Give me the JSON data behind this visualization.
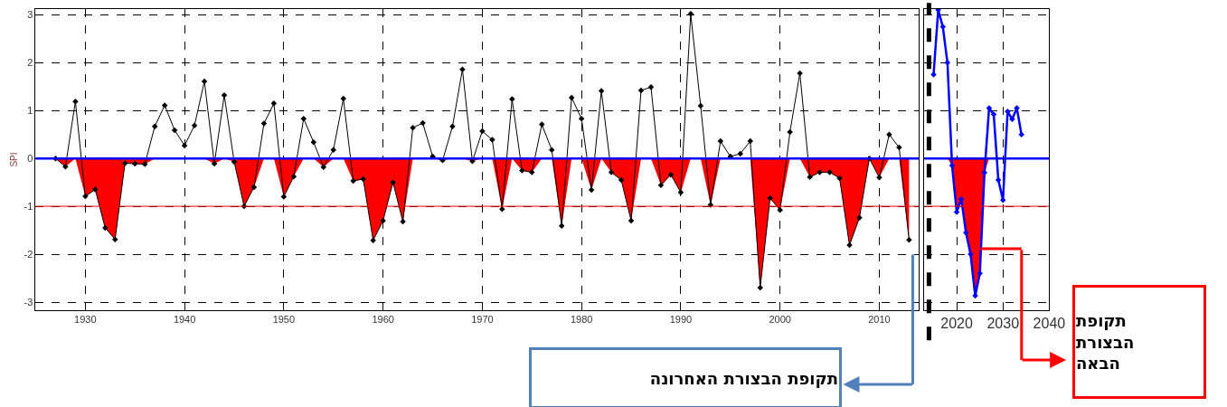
{
  "chart_data": [
    {
      "type": "line",
      "ylabel": "SPI",
      "x": [
        1927,
        1928,
        1929,
        1930,
        1931,
        1932,
        1933,
        1934,
        1935,
        1936,
        1937,
        1938,
        1939,
        1940,
        1941,
        1942,
        1943,
        1944,
        1945,
        1946,
        1947,
        1948,
        1949,
        1950,
        1951,
        1952,
        1953,
        1954,
        1955,
        1956,
        1957,
        1958,
        1959,
        1960,
        1961,
        1962,
        1963,
        1964,
        1965,
        1966,
        1967,
        1968,
        1969,
        1970,
        1971,
        1972,
        1973,
        1974,
        1975,
        1976,
        1977,
        1978,
        1979,
        1980,
        1981,
        1982,
        1983,
        1984,
        1985,
        1986,
        1987,
        1988,
        1989,
        1990,
        1991,
        1992,
        1993,
        1994,
        1995,
        1996,
        1997,
        1998,
        1999,
        2000,
        2001,
        2002,
        2003,
        2004,
        2005,
        2006,
        2007,
        2008,
        2009,
        2010,
        2011,
        2012,
        2013
      ],
      "series": [
        {
          "type": "area",
          "color": "#ff0000",
          "values": [
            0,
            -0.17,
            0,
            -0.79,
            -0.65,
            -1.45,
            -1.69,
            -0.1,
            -0.11,
            -0.12,
            0,
            0,
            0,
            0,
            0,
            0,
            -0.11,
            0,
            -0.07,
            -1.0,
            -0.6,
            0,
            0,
            -0.8,
            -0.38,
            0,
            0,
            -0.18,
            0,
            0,
            -0.47,
            -0.43,
            -1.71,
            -1.3,
            -0.5,
            -1.32,
            0,
            0,
            0,
            -0.04,
            0,
            0,
            -0.06,
            0,
            0,
            -1.06,
            0,
            -0.25,
            -0.29,
            0,
            0,
            -1.41,
            0,
            0,
            -0.66,
            0,
            -0.29,
            -0.45,
            -1.3,
            0,
            0,
            -0.56,
            -0.34,
            -0.71,
            0,
            0,
            -0.97,
            0,
            0,
            0,
            0,
            -2.7,
            -0.83,
            -1.08,
            0,
            0,
            -0.39,
            -0.29,
            -0.29,
            -0.41,
            -1.81,
            -1.24,
            0,
            -0.4,
            0,
            0,
            -1.7
          ]
        },
        {
          "color": "#000000",
          "marker": "diamond",
          "values": [
            0,
            -0.17,
            1.19,
            -0.79,
            -0.65,
            -1.45,
            -1.69,
            -0.1,
            -0.11,
            -0.12,
            0.67,
            1.11,
            0.59,
            0.27,
            0.69,
            1.61,
            -0.11,
            1.32,
            -0.07,
            -1.0,
            -0.6,
            0.73,
            1.15,
            -0.8,
            -0.38,
            0.83,
            0.34,
            -0.18,
            0.18,
            1.25,
            -0.47,
            -0.43,
            -1.71,
            -1.3,
            -0.5,
            -1.32,
            0.64,
            0.74,
            0.04,
            -0.04,
            0.67,
            1.86,
            -0.06,
            0.57,
            0.39,
            -1.06,
            1.24,
            -0.25,
            -0.29,
            0.71,
            0.18,
            -1.41,
            1.27,
            0.83,
            -0.66,
            1.41,
            -0.29,
            -0.45,
            -1.3,
            1.42,
            1.49,
            -0.56,
            -0.34,
            -0.71,
            3.02,
            1.1,
            -0.97,
            0.36,
            0.04,
            0.1,
            0.36,
            -2.7,
            -0.83,
            -1.08,
            0.55,
            1.78,
            -0.39,
            -0.29,
            -0.29,
            -0.41,
            -1.81,
            -1.24,
            0,
            -0.4,
            0.5,
            0.23,
            -1.7
          ]
        }
      ],
      "xlim": [
        1925,
        2014
      ],
      "xticks": [
        1930,
        1940,
        1950,
        1960,
        1970,
        1980,
        1990,
        2000,
        2010
      ],
      "ylim": [
        -3.17,
        3.12
      ],
      "yticks": [
        -3,
        -2,
        -1,
        0,
        1,
        2,
        3
      ],
      "grid": true,
      "line_style": "solid",
      "ref_lines": [
        {
          "axis": "y",
          "value": 0,
          "color": "#0000ff"
        },
        {
          "axis": "y",
          "value": -1,
          "color": "#ff0000"
        }
      ],
      "annotations": [
        "תקופת הבצורת האחרונה"
      ]
    },
    {
      "type": "line",
      "x": [
        2015,
        2016,
        2017,
        2018,
        2019,
        2020,
        2021,
        2022,
        2023,
        2024,
        2025,
        2026,
        2027,
        2028,
        2029,
        2030,
        2031,
        2032,
        2033,
        2034
      ],
      "series": [
        {
          "type": "area",
          "color": "#ff0000",
          "values": [
            0,
            0,
            0,
            0,
            -0.15,
            -1.12,
            -0.85,
            -1.55,
            -2.0,
            -2.87,
            -2.4,
            -0.3,
            0,
            0,
            0,
            0,
            0,
            0,
            0,
            0
          ]
        },
        {
          "color": "#0000ff",
          "marker": "diamond",
          "values": [
            1.75,
            3.1,
            2.75,
            2.0,
            -0.15,
            -1.12,
            -0.85,
            -1.55,
            -2.0,
            -2.87,
            -2.4,
            -0.3,
            1.05,
            0.92,
            -0.45,
            -0.87,
            0.98,
            0.82,
            1.05,
            0.5
          ]
        }
      ],
      "xlim": [
        2013,
        2040
      ],
      "xticks": [
        2020,
        2030,
        2040
      ],
      "ylim": [
        -3.17,
        3.12
      ],
      "yticks": [
        {
          "value": -3,
          "label": null
        },
        {
          "value": -2,
          "label": null
        },
        {
          "value": -1,
          "label": null
        },
        {
          "value": 0,
          "label": null
        },
        {
          "value": 1,
          "label": null
        },
        {
          "value": 2,
          "label": null
        },
        {
          "value": 3,
          "label": null
        }
      ],
      "tick_labels": "x",
      "grid": true,
      "line_style": "solid",
      "ref_lines": [
        {
          "axis": "y",
          "value": 0,
          "color": "#0000ff"
        },
        {
          "axis": "y",
          "value": -1,
          "color": "#ff0000"
        },
        {
          "axis": "x",
          "value": 2014,
          "color": "#000000",
          "line_style": "dashed"
        }
      ],
      "annotations": [
        "תקופת\nהבצורת\nהבאה"
      ]
    }
  ]
}
